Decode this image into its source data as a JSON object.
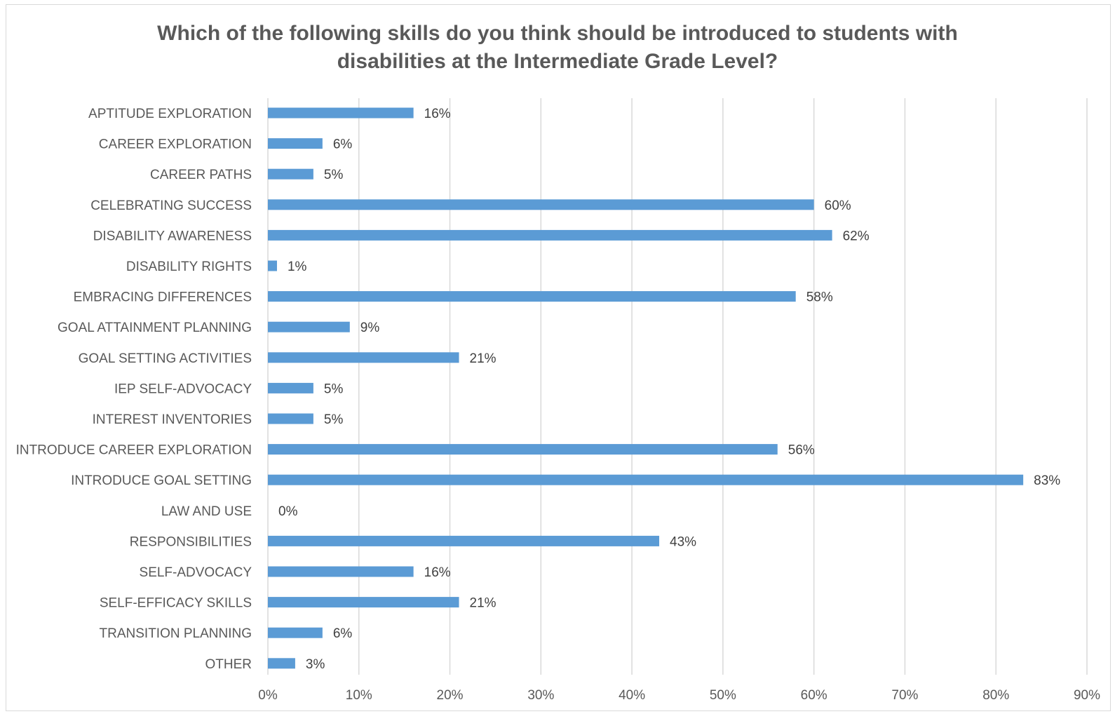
{
  "chart_data": {
    "type": "bar",
    "orientation": "horizontal",
    "title_lines": [
      "Which of the following skills do you think should be introduced to students with",
      "disabilities at the Intermediate Grade Level?"
    ],
    "categories": [
      "APTITUDE EXPLORATION",
      "CAREER EXPLORATION",
      "CAREER PATHS",
      "CELEBRATING SUCCESS",
      "DISABILITY AWARENESS",
      "DISABILITY RIGHTS",
      "EMBRACING DIFFERENCES",
      "GOAL ATTAINMENT PLANNING",
      "GOAL SETTING ACTIVITIES",
      "IEP SELF-ADVOCACY",
      "INTEREST INVENTORIES",
      "INTRODUCE CAREER EXPLORATION",
      "INTRODUCE GOAL SETTING",
      "LAW AND USE",
      "RESPONSIBILITIES",
      "SELF-ADVOCACY",
      "SELF-EFFICACY SKILLS",
      "TRANSITION PLANNING",
      "OTHER"
    ],
    "values": [
      16,
      6,
      5,
      60,
      62,
      1,
      58,
      9,
      21,
      5,
      5,
      56,
      83,
      0,
      43,
      16,
      21,
      6,
      3
    ],
    "value_labels": [
      "16%",
      "6%",
      "5%",
      "60%",
      "62%",
      "1%",
      "58%",
      "9%",
      "21%",
      "5%",
      "5%",
      "56%",
      "83%",
      "0%",
      "43%",
      "16%",
      "21%",
      "6%",
      "3%"
    ],
    "xlim": [
      0,
      90
    ],
    "xticks": [
      0,
      10,
      20,
      30,
      40,
      50,
      60,
      70,
      80,
      90
    ],
    "xtick_labels": [
      "0%",
      "10%",
      "20%",
      "30%",
      "40%",
      "50%",
      "60%",
      "70%",
      "80%",
      "90%"
    ],
    "grid": "vertical",
    "legend": "none",
    "bar_color": "#5b9bd5",
    "grid_color": "#d9d9d9"
  }
}
